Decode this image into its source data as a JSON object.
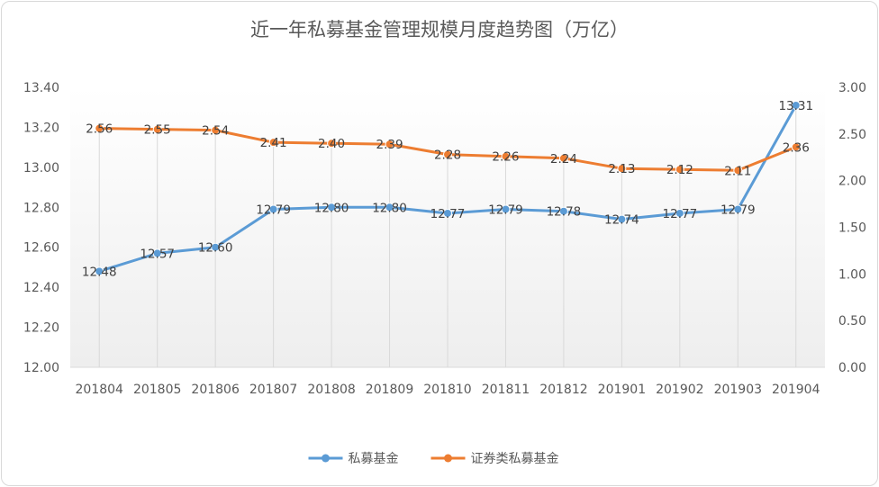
{
  "chart_data": {
    "type": "line",
    "title": "近一年私募基金管理规模月度趋势图（万亿）",
    "categories": [
      "201804",
      "201805",
      "201806",
      "201807",
      "201808",
      "201809",
      "201810",
      "201811",
      "201812",
      "201901",
      "201902",
      "201903",
      "201904"
    ],
    "y_left": {
      "min": 12.0,
      "max": 13.4,
      "step": 0.2,
      "decimals": 2
    },
    "y_right": {
      "min": 0.0,
      "max": 3.0,
      "step": 0.5,
      "decimals": 2
    },
    "series": [
      {
        "name": "私募基金",
        "axis": "left",
        "color": "#5b9bd5",
        "values": [
          12.48,
          12.57,
          12.6,
          12.79,
          12.8,
          12.8,
          12.77,
          12.79,
          12.78,
          12.74,
          12.77,
          12.79,
          13.31
        ],
        "labels": [
          "12.48",
          "12.57",
          "12.60",
          "12.79",
          "12.80",
          "12.80",
          "12.77",
          "12.79",
          "12.78",
          "12.74",
          "12.77",
          "12.79",
          "13.31"
        ]
      },
      {
        "name": "证券类私募基金",
        "axis": "right",
        "color": "#ed7d31",
        "values": [
          2.56,
          2.55,
          2.54,
          2.41,
          2.4,
          2.39,
          2.28,
          2.26,
          2.24,
          2.13,
          2.12,
          2.11,
          2.36
        ],
        "labels": [
          "2.56",
          "2.55",
          "2.54",
          "2.41",
          "2.40",
          "2.39",
          "2.28",
          "2.26",
          "2.24",
          "2.13",
          "2.12",
          "2.11",
          "2.36"
        ]
      }
    ],
    "grid": "vertical drop lines",
    "legend_position": "bottom"
  }
}
